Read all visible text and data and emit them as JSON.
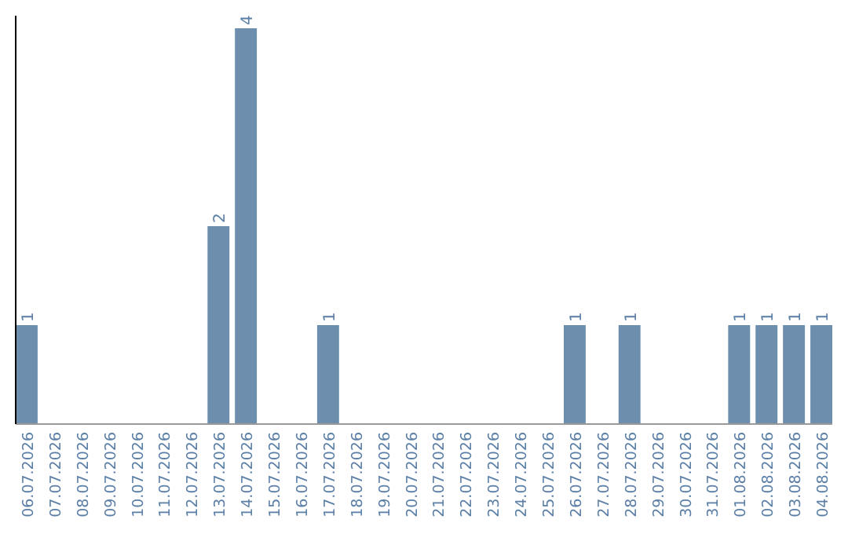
{
  "chart_data": {
    "type": "bar",
    "categories": [
      "06.07.2026",
      "07.07.2026",
      "08.07.2026",
      "09.07.2026",
      "10.07.2026",
      "11.07.2026",
      "12.07.2026",
      "13.07.2026",
      "14.07.2026",
      "15.07.2026",
      "16.07.2026",
      "17.07.2026",
      "18.07.2026",
      "19.07.2026",
      "20.07.2026",
      "21.07.2026",
      "22.07.2026",
      "23.07.2026",
      "24.07.2026",
      "25.07.2026",
      "26.07.2026",
      "27.07.2026",
      "28.07.2026",
      "29.07.2026",
      "30.07.2026",
      "31.07.2026",
      "01.08.2026",
      "02.08.2026",
      "03.08.2026",
      "04.08.2026"
    ],
    "values": [
      1,
      0,
      0,
      0,
      0,
      0,
      0,
      2,
      4,
      0,
      0,
      1,
      0,
      0,
      0,
      0,
      0,
      0,
      0,
      0,
      1,
      0,
      1,
      0,
      0,
      0,
      1,
      1,
      1,
      1
    ],
    "value_labels": [
      "1",
      null,
      null,
      null,
      null,
      null,
      null,
      "2",
      "4",
      null,
      null,
      "1",
      null,
      null,
      null,
      null,
      null,
      null,
      null,
      null,
      "1",
      null,
      "1",
      null,
      null,
      null,
      "1",
      "1",
      "1",
      "1"
    ],
    "color": "#6d8fad"
  }
}
